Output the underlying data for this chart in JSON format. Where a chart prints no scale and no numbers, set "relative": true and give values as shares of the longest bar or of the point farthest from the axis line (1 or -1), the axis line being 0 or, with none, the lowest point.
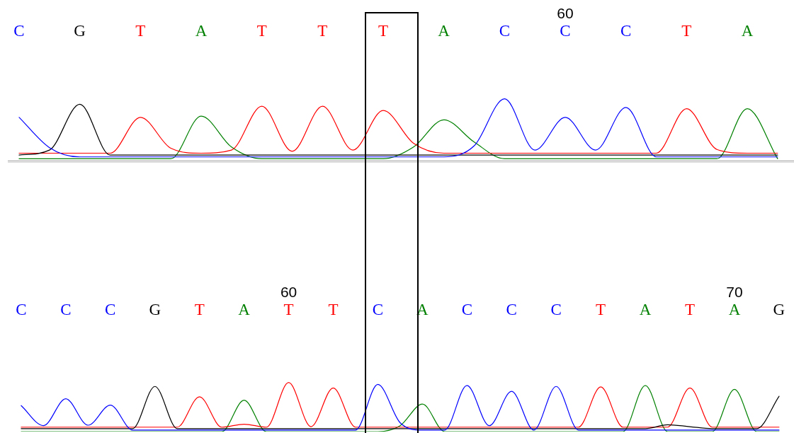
{
  "chart_data": [
    {
      "type": "line",
      "relative": true,
      "categories": [
        "C",
        null,
        "G",
        null,
        "T",
        null,
        "A",
        null,
        "T",
        null,
        "T",
        null,
        "T",
        null,
        "A",
        null,
        "C",
        null,
        "60\nC",
        null,
        "C",
        null,
        "T",
        null,
        "A",
        null
      ],
      "series": [
        {
          "color": "#0000ff",
          "values": [
            0.7,
            0.21,
            0.06,
            0.06,
            0.06,
            0.06,
            0.06,
            0.06,
            0.06,
            0.06,
            0.06,
            0.06,
            0.06,
            0.06,
            0.06,
            0.24,
            1,
            0.17,
            0.7,
            0.17,
            0.86,
            0.06,
            0.06,
            0.06,
            0.06,
            0.06
          ]
        },
        {
          "color": "#000000",
          "values": [
            0.09,
            0.17,
            0.91,
            0.09,
            0.09,
            0.09,
            0.09,
            0.09,
            0.09,
            0.09,
            0.09,
            0.09,
            0.09,
            0.09,
            0.09,
            0.09,
            0.09,
            0.09,
            0.09,
            0.09,
            0.09,
            0.09,
            0.09,
            0.09,
            0.09,
            0.09
          ]
        },
        {
          "color": "#ff0000",
          "values": [
            0.12,
            0.12,
            0.12,
            0.12,
            0.7,
            0.2,
            0.12,
            0.17,
            0.88,
            0.15,
            0.88,
            0.17,
            0.81,
            0.28,
            0.12,
            0.12,
            0.12,
            0.12,
            0.12,
            0.12,
            0.12,
            0.12,
            0.84,
            0.18,
            0.12,
            0.12
          ]
        },
        {
          "color": "#008000",
          "values": [
            0.03,
            0.03,
            0.03,
            0.03,
            0.03,
            0.03,
            0.72,
            0.22,
            0.03,
            0.03,
            0.03,
            0.03,
            0.03,
            0.22,
            0.66,
            0.3,
            0.03,
            0.03,
            0.03,
            0.03,
            0.03,
            0.03,
            0.03,
            0.03,
            0.84,
            0.03
          ]
        }
      ]
    },
    {
      "type": "line",
      "relative": true,
      "categories": [
        "C",
        null,
        "C",
        null,
        "C",
        null,
        "G",
        null,
        "T",
        null,
        "A",
        null,
        "60\nT",
        null,
        "T",
        null,
        "C",
        null,
        "A",
        null,
        "C",
        null,
        "C",
        null,
        "C",
        null,
        "T",
        null,
        "A",
        null,
        "T",
        null,
        "70\nA",
        null,
        "G"
      ],
      "series": [
        {
          "color": "#0000ff",
          "values": [
            0.53,
            0.12,
            0.67,
            0.13,
            0.54,
            0.03,
            0.03,
            0.03,
            0.03,
            0.03,
            0.03,
            0.03,
            0.03,
            0.03,
            0.03,
            0.03,
            0.96,
            0.18,
            0.03,
            0.03,
            0.94,
            0.12,
            0.82,
            0.03,
            0.92,
            0.03,
            0.03,
            0.03,
            0.03,
            0.03,
            0.03,
            0.03,
            0.03,
            0.03,
            0.03
          ]
        },
        {
          "color": "#000000",
          "values": [
            0.06,
            0.06,
            0.06,
            0.06,
            0.06,
            0.06,
            0.92,
            0.06,
            0.06,
            0.06,
            0.06,
            0.06,
            0.06,
            0.06,
            0.06,
            0.06,
            0.06,
            0.06,
            0.06,
            0.06,
            0.06,
            0.06,
            0.06,
            0.06,
            0.06,
            0.06,
            0.06,
            0.06,
            0.06,
            0.14,
            0.1,
            0.06,
            0.06,
            0.06,
            0.72
          ]
        },
        {
          "color": "#ff0000",
          "values": [
            0.09,
            0.09,
            0.09,
            0.09,
            0.09,
            0.09,
            0.09,
            0.09,
            0.71,
            0.09,
            0.15,
            0.09,
            1,
            0.1,
            0.89,
            0.09,
            0.09,
            0.09,
            0.09,
            0.09,
            0.09,
            0.09,
            0.09,
            0.09,
            0.09,
            0.09,
            0.91,
            0.09,
            0.09,
            0.09,
            0.89,
            0.09,
            0.09,
            0.09,
            0.09
          ]
        },
        {
          "color": "#008000",
          "values": [
            0,
            0,
            0,
            0,
            0,
            0,
            0,
            0,
            0,
            0,
            0.64,
            0,
            0,
            0,
            0,
            0,
            0,
            0.12,
            0.56,
            0,
            0,
            0,
            0,
            0,
            0,
            0,
            0,
            0,
            0.94,
            0,
            0,
            0,
            0.86,
            0,
            0
          ]
        }
      ]
    }
  ]
}
